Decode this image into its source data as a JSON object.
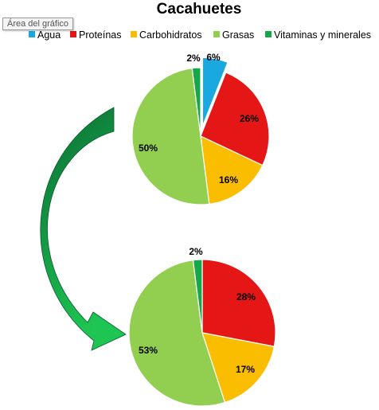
{
  "tooltip": "Área del gráfico",
  "chart_data": [
    {
      "type": "pie",
      "title": "Cacahuetes",
      "legend_position": "top",
      "categories": [
        "Agua",
        "Proteínas",
        "Carbohidratos",
        "Grasas",
        "Vitaminas y minerales"
      ],
      "colors": [
        "#19a9e0",
        "#e51616",
        "#fbbd00",
        "#92cf50",
        "#16a74c"
      ],
      "values": [
        6,
        26,
        16,
        50,
        2
      ],
      "labels": [
        "6%",
        "26%",
        "16%",
        "50%",
        "2%"
      ],
      "exploded": [
        "Agua"
      ]
    },
    {
      "type": "pie",
      "categories": [
        "Proteínas",
        "Carbohidratos",
        "Grasas",
        "Vitaminas y minerales"
      ],
      "colors": [
        "#e51616",
        "#fbbd00",
        "#92cf50",
        "#16a74c"
      ],
      "values": [
        28,
        17,
        53,
        2
      ],
      "labels": [
        "28%",
        "17%",
        "53%",
        "2%"
      ]
    }
  ],
  "arrow_colors": {
    "dark": "#0a6b35",
    "light": "#1ec552"
  }
}
